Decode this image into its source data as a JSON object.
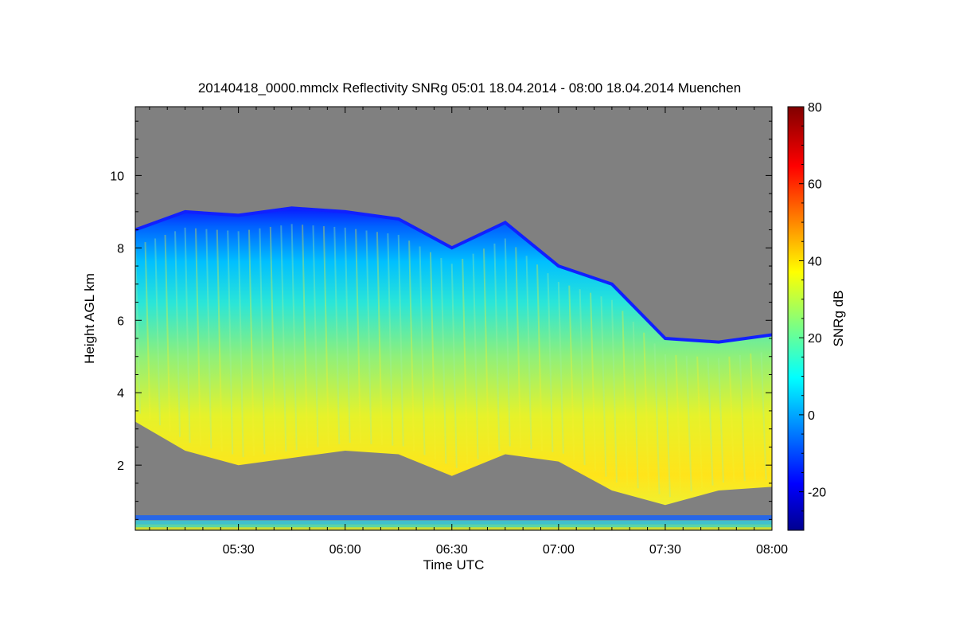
{
  "chart_data": {
    "type": "heatmap",
    "title": "20140418_0000.mmclx Reflectivity SNRg   05:01 18.04.2014 - 08:00 18.04.2014 Muenchen",
    "xlabel": "Time UTC",
    "ylabel": "Height AGL km",
    "colorbar_label": "SNRg dB",
    "x_range": [
      "05:01",
      "08:00"
    ],
    "x_ticks": [
      "05:30",
      "06:00",
      "06:30",
      "07:00",
      "07:30",
      "08:00"
    ],
    "y_range": [
      0.2,
      11.9
    ],
    "y_ticks": [
      2,
      4,
      6,
      8,
      10
    ],
    "color_range": [
      -30,
      80
    ],
    "color_ticks": [
      -20,
      0,
      20,
      40,
      60,
      80
    ],
    "colormap": "jet",
    "background_color": "#808080",
    "cloud_top_km": [
      {
        "time": "05:01",
        "height": 8.5
      },
      {
        "time": "05:15",
        "height": 9.0
      },
      {
        "time": "05:30",
        "height": 8.9
      },
      {
        "time": "05:45",
        "height": 9.1
      },
      {
        "time": "06:00",
        "height": 9.0
      },
      {
        "time": "06:15",
        "height": 8.8
      },
      {
        "time": "06:30",
        "height": 8.0
      },
      {
        "time": "06:45",
        "height": 8.7
      },
      {
        "time": "07:00",
        "height": 7.5
      },
      {
        "time": "07:15",
        "height": 7.0
      },
      {
        "time": "07:30",
        "height": 5.5
      },
      {
        "time": "07:45",
        "height": 5.4
      },
      {
        "time": "08:00",
        "height": 5.6
      }
    ],
    "cloud_base_km": [
      {
        "time": "05:01",
        "height": 3.2
      },
      {
        "time": "05:15",
        "height": 2.4
      },
      {
        "time": "05:30",
        "height": 2.0
      },
      {
        "time": "05:45",
        "height": 2.2
      },
      {
        "time": "06:00",
        "height": 2.4
      },
      {
        "time": "06:15",
        "height": 2.3
      },
      {
        "time": "06:30",
        "height": 1.7
      },
      {
        "time": "06:45",
        "height": 2.3
      },
      {
        "time": "07:00",
        "height": 2.1
      },
      {
        "time": "07:15",
        "height": 1.3
      },
      {
        "time": "07:30",
        "height": 0.9
      },
      {
        "time": "07:45",
        "height": 1.3
      },
      {
        "time": "08:00",
        "height": 1.4
      }
    ]
  }
}
